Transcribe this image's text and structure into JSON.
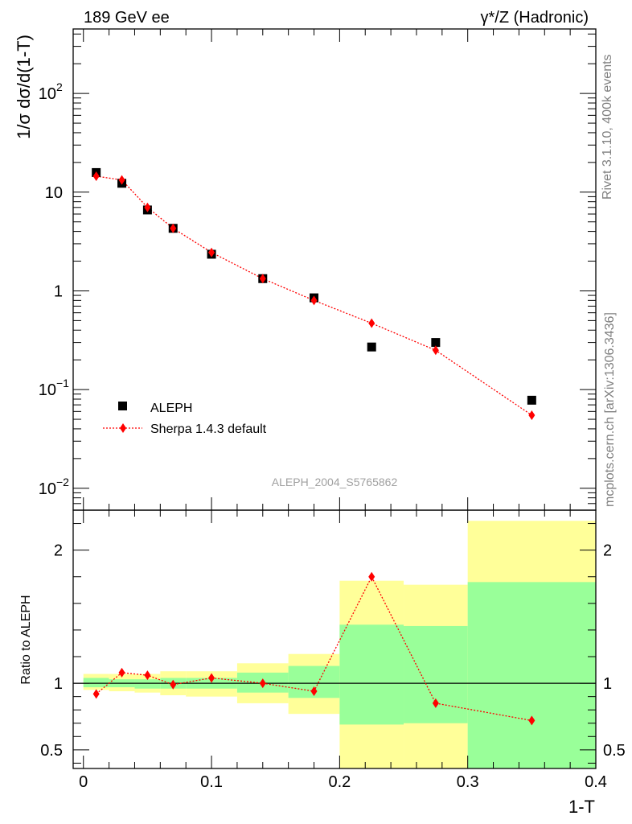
{
  "header": {
    "left": "189 GeV ee",
    "right": "γ*/Z (Hadronic)"
  },
  "side": {
    "upper": "Rivet 3.1.10,  400k events",
    "lower": "mcplots.cern.ch [arXiv:1306.3436]"
  },
  "watermark": "ALEPH_2004_S5765862",
  "chart_data": [
    {
      "type": "scatter",
      "panel": "main",
      "ylabel": "1/σ  dσ/d(1-T)",
      "yscale": "log",
      "ylim": [
        0.006,
        450
      ],
      "xlim": [
        -0.008,
        0.4
      ],
      "y_ticks": [
        {
          "value": 100,
          "label": "10",
          "sup": "2"
        },
        {
          "value": 10,
          "label": "10",
          "sup": ""
        },
        {
          "value": 1,
          "label": "1",
          "sup": ""
        },
        {
          "value": 0.1,
          "label": "10",
          "sup": "−1"
        },
        {
          "value": 0.01,
          "label": "10",
          "sup": "−2"
        }
      ],
      "legend": {
        "position": "bottom-left",
        "entries": [
          "ALEPH",
          "Sherpa 1.4.3 default"
        ]
      },
      "series": [
        {
          "name": "ALEPH",
          "color": "#000000",
          "marker": "square",
          "x": [
            0.01,
            0.03,
            0.05,
            0.07,
            0.1,
            0.14,
            0.18,
            0.225,
            0.275,
            0.35
          ],
          "y": [
            15.8,
            12.3,
            6.6,
            4.3,
            2.35,
            1.33,
            0.85,
            0.27,
            0.3,
            0.078
          ]
        },
        {
          "name": "Sherpa 1.4.3 default",
          "color": "#ff0000",
          "marker": "diamond",
          "line": "dotted",
          "x": [
            0.01,
            0.03,
            0.05,
            0.07,
            0.1,
            0.14,
            0.18,
            0.225,
            0.275,
            0.35
          ],
          "y": [
            14.5,
            13.3,
            7.0,
            4.3,
            2.45,
            1.33,
            0.8,
            0.47,
            0.25,
            0.055
          ]
        }
      ]
    },
    {
      "type": "scatter",
      "panel": "ratio",
      "xlabel": "1-T",
      "ylabel": "Ratio to ALEPH",
      "ylim": [
        0.36,
        2.3
      ],
      "xlim": [
        -0.008,
        0.4
      ],
      "x_ticks": [
        {
          "value": 0,
          "label": "0"
        },
        {
          "value": 0.1,
          "label": "0.1"
        },
        {
          "value": 0.2,
          "label": "0.2"
        },
        {
          "value": 0.3,
          "label": "0.3"
        },
        {
          "value": 0.4,
          "label": "0.4"
        }
      ],
      "y_ticks": [
        {
          "value": 0.5,
          "label": "0.5"
        },
        {
          "value": 1,
          "label": "1"
        },
        {
          "value": 2,
          "label": "2"
        }
      ],
      "bands": {
        "colors": {
          "yellow": "#ffff99",
          "green": "#99ff99"
        },
        "bins": [
          {
            "x0": 0.0,
            "x1": 0.02,
            "y_lo": 0.95,
            "y_hi": 1.07,
            "g_lo": 0.97,
            "g_hi": 1.04
          },
          {
            "x0": 0.02,
            "x1": 0.04,
            "y_lo": 0.94,
            "y_hi": 1.07,
            "g_lo": 0.97,
            "g_hi": 1.03
          },
          {
            "x0": 0.04,
            "x1": 0.06,
            "y_lo": 0.93,
            "y_hi": 1.07,
            "g_lo": 0.96,
            "g_hi": 1.03
          },
          {
            "x0": 0.06,
            "x1": 0.08,
            "y_lo": 0.91,
            "y_hi": 1.09,
            "g_lo": 0.96,
            "g_hi": 1.04
          },
          {
            "x0": 0.08,
            "x1": 0.12,
            "y_lo": 0.9,
            "y_hi": 1.09,
            "g_lo": 0.96,
            "g_hi": 1.04
          },
          {
            "x0": 0.12,
            "x1": 0.16,
            "y_lo": 0.85,
            "y_hi": 1.15,
            "g_lo": 0.93,
            "g_hi": 1.08
          },
          {
            "x0": 0.16,
            "x1": 0.2,
            "y_lo": 0.77,
            "y_hi": 1.22,
            "g_lo": 0.89,
            "g_hi": 1.13
          },
          {
            "x0": 0.2,
            "x1": 0.25,
            "y_lo": 0.36,
            "y_hi": 1.77,
            "g_lo": 0.69,
            "g_hi": 1.44
          },
          {
            "x0": 0.25,
            "x1": 0.3,
            "y_lo": 0.36,
            "y_hi": 1.74,
            "g_lo": 0.7,
            "g_hi": 1.43
          },
          {
            "x0": 0.3,
            "x1": 0.4,
            "y_lo": 0.36,
            "y_hi": 2.22,
            "g_lo": 0.36,
            "g_hi": 1.76
          }
        ]
      },
      "series": [
        {
          "name": "Sherpa 1.4.3 default",
          "color": "#ff0000",
          "marker": "diamond",
          "line": "dotted",
          "x": [
            0.01,
            0.03,
            0.05,
            0.07,
            0.1,
            0.14,
            0.18,
            0.225,
            0.275,
            0.35
          ],
          "y": [
            0.92,
            1.08,
            1.06,
            0.99,
            1.04,
            1.0,
            0.94,
            1.8,
            0.85,
            0.72
          ]
        }
      ]
    }
  ]
}
